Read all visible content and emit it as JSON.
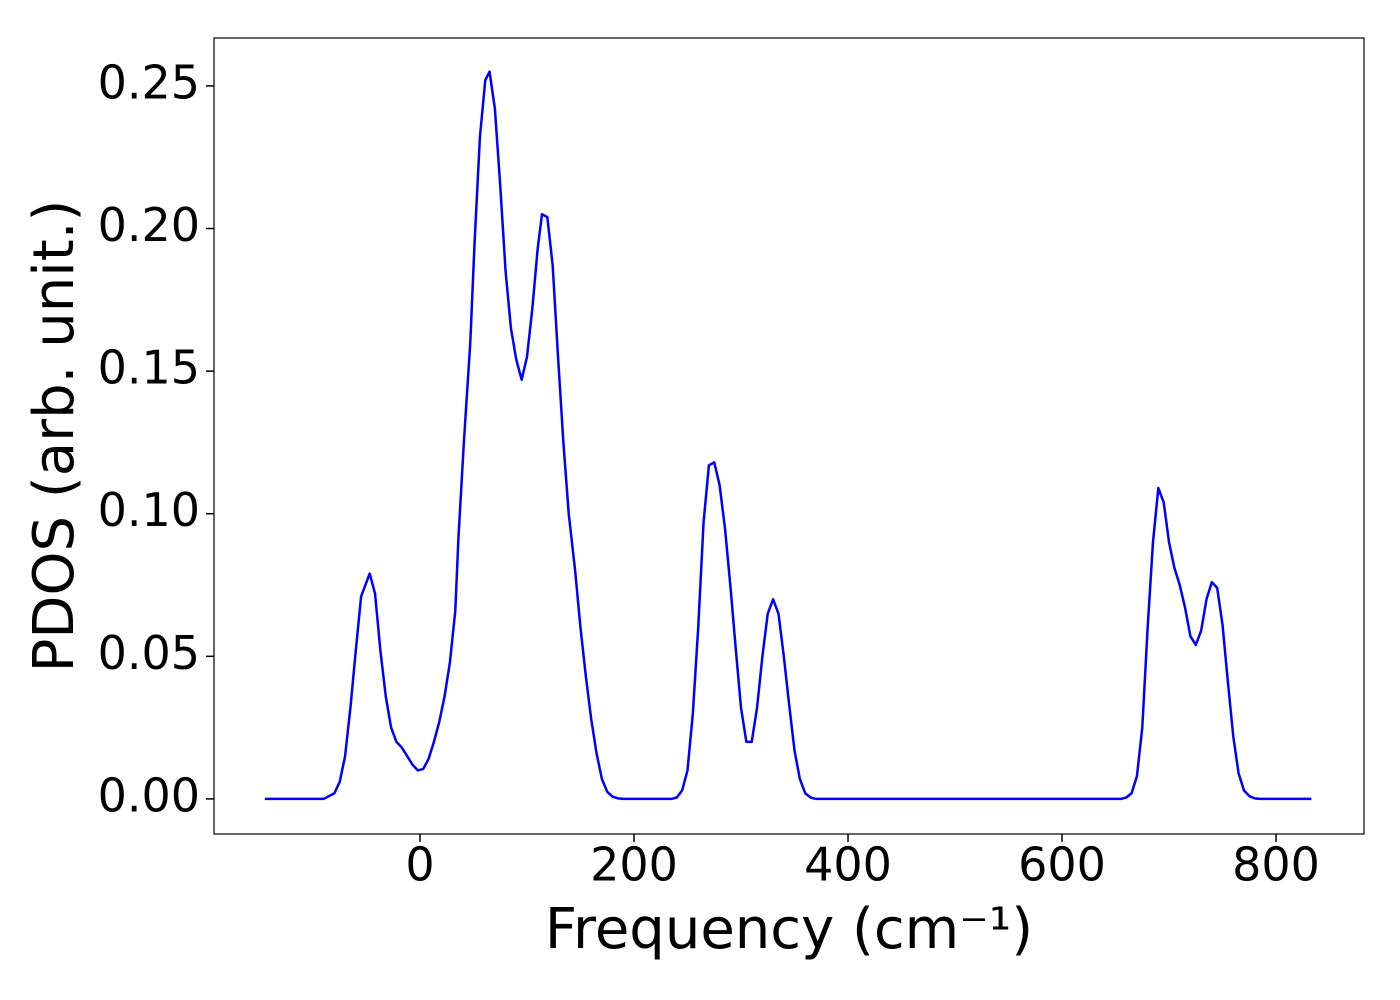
{
  "chart_data": {
    "type": "line",
    "x_label": "Frequency (cm⁻¹)",
    "y_label": "PDOS (arb. unit.)",
    "x": [
      -145,
      -90,
      -85,
      -80,
      -75,
      -70,
      -65,
      -60,
      -55,
      -47,
      -42,
      -37,
      -32,
      -27,
      -22,
      -17,
      -12,
      -7,
      -2,
      3,
      8,
      13,
      18,
      23,
      28,
      33,
      36,
      41,
      47,
      51,
      56,
      61,
      65,
      70,
      75,
      80,
      85,
      90,
      95,
      100,
      105,
      110,
      114,
      119,
      124,
      129,
      134,
      139,
      145,
      150,
      155,
      160,
      165,
      170,
      175,
      180,
      185,
      190,
      235,
      240,
      245,
      250,
      255,
      260,
      265,
      270,
      275,
      280,
      285,
      290,
      295,
      300,
      305,
      310,
      315,
      320,
      325,
      330,
      335,
      340,
      345,
      350,
      355,
      360,
      365,
      370,
      655,
      660,
      665,
      670,
      675,
      680,
      685,
      690,
      695,
      700,
      705,
      710,
      715,
      720,
      725,
      730,
      735,
      740,
      745,
      750,
      755,
      760,
      765,
      770,
      775,
      780,
      785,
      833
    ],
    "series": [
      {
        "color": "#0000ff",
        "values": [
          0,
          0,
          0.001,
          0.002,
          0.006,
          0.015,
          0.032,
          0.052,
          0.071,
          0.079,
          0.072,
          0.052,
          0.036,
          0.025,
          0.02,
          0.018,
          0.015,
          0.012,
          0.01,
          0.0105,
          0.014,
          0.02,
          0.027,
          0.036,
          0.048,
          0.066,
          0.092,
          0.125,
          0.16,
          0.195,
          0.232,
          0.252,
          0.255,
          0.242,
          0.215,
          0.185,
          0.165,
          0.154,
          0.147,
          0.155,
          0.172,
          0.193,
          0.205,
          0.204,
          0.187,
          0.155,
          0.125,
          0.1,
          0.08,
          0.06,
          0.043,
          0.028,
          0.016,
          0.007,
          0.0025,
          0.0008,
          0.0002,
          0,
          0,
          0.0005,
          0.003,
          0.01,
          0.03,
          0.06,
          0.097,
          0.117,
          0.118,
          0.11,
          0.095,
          0.075,
          0.053,
          0.032,
          0.02,
          0.02,
          0.032,
          0.05,
          0.065,
          0.07,
          0.065,
          0.05,
          0.033,
          0.017,
          0.007,
          0.002,
          0.0005,
          0,
          0,
          0.0005,
          0.002,
          0.008,
          0.025,
          0.06,
          0.09,
          0.109,
          0.104,
          0.09,
          0.081,
          0.075,
          0.067,
          0.057,
          0.054,
          0.059,
          0.07,
          0.076,
          0.074,
          0.061,
          0.041,
          0.022,
          0.009,
          0.003,
          0.001,
          0.0002,
          0,
          0
        ]
      }
    ],
    "xlim": [
      -192.5,
      882.2
    ],
    "ylim": [
      -0.0123,
      0.2668
    ],
    "xticks": [
      0,
      200,
      400,
      600,
      800
    ],
    "yticks": [
      {
        "value": 0,
        "label": "0.00"
      },
      {
        "value": 0.05,
        "label": "0.05"
      },
      {
        "value": 0.1,
        "label": "0.10"
      },
      {
        "value": 0.15,
        "label": "0.15"
      },
      {
        "value": 0.2,
        "label": "0.20"
      },
      {
        "value": 0.25,
        "label": "0.25"
      }
    ],
    "grid": false
  }
}
